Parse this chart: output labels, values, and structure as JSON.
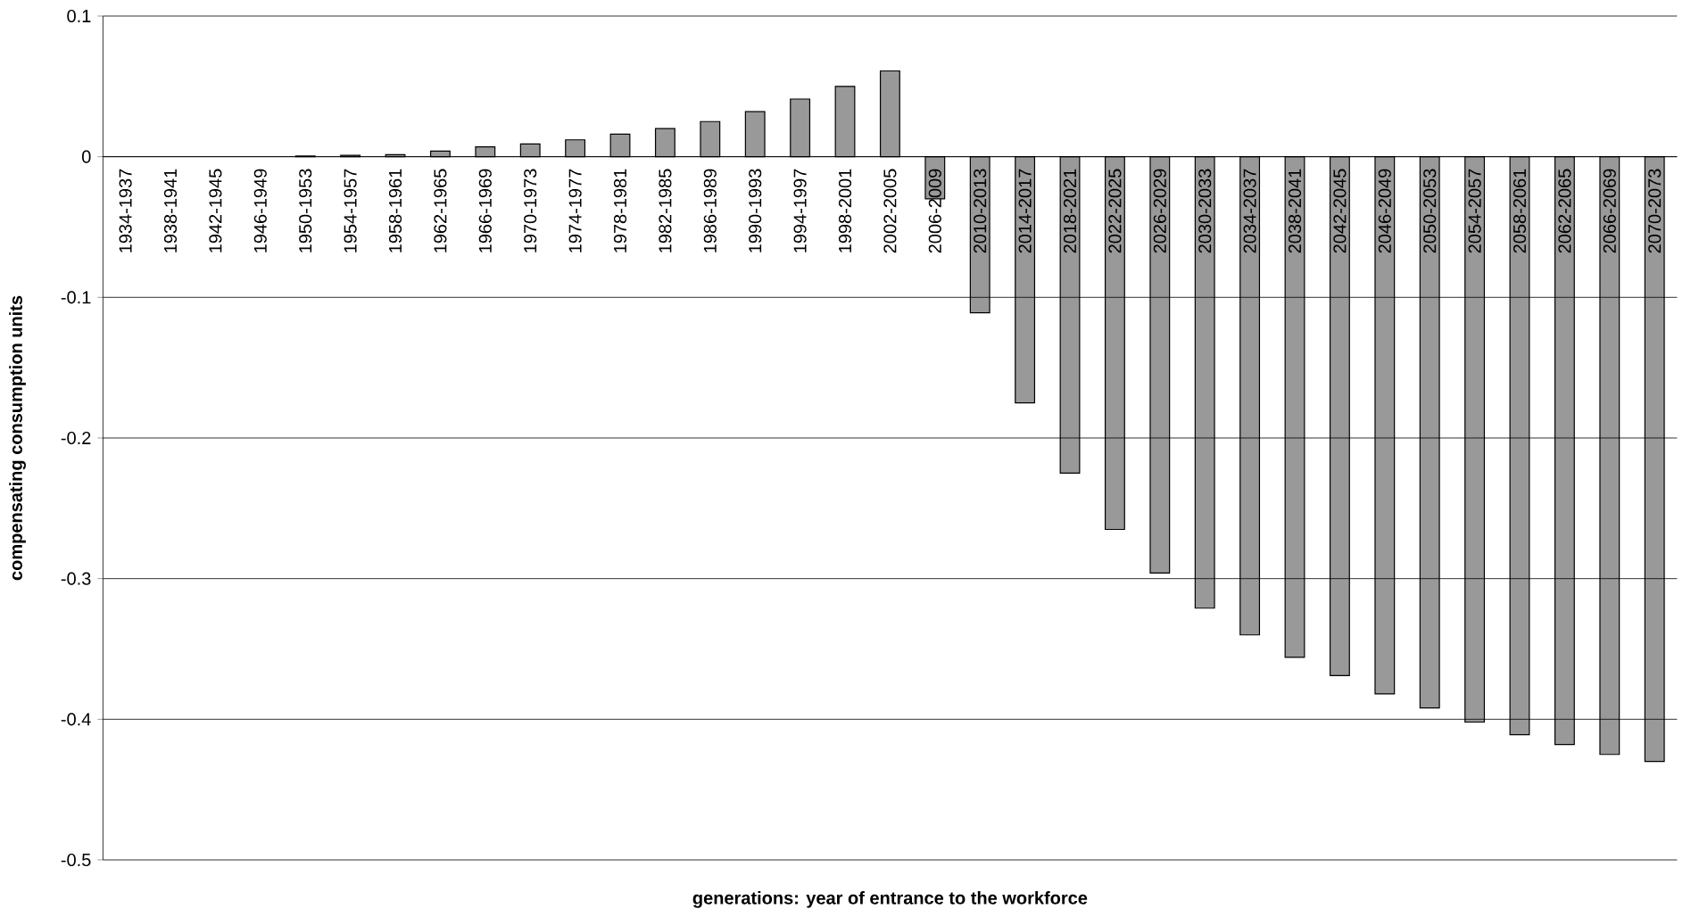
{
  "chart_data": {
    "type": "bar",
    "xlabel": "generations: year of entrance to the workforce",
    "ylabel": "compensating consumption units",
    "categories": [
      "1934-1937",
      "1938-1941",
      "1942-1945",
      "1946-1949",
      "1950-1953",
      "1954-1957",
      "1958-1961",
      "1962-1965",
      "1966-1969",
      "1970-1973",
      "1974-1977",
      "1978-1981",
      "1982-1985",
      "1986-1989",
      "1990-1993",
      "1994-1997",
      "1998-2001",
      "2002-2005",
      "2006-2009",
      "2010-2013",
      "2014-2017",
      "2018-2021",
      "2022-2025",
      "2026-2029",
      "2030-2033",
      "2034-2037",
      "2038-2041",
      "2042-2045",
      "2046-2049",
      "2050-2053",
      "2054-2057",
      "2058-2061",
      "2062-2065",
      "2066-2069",
      "2070-2073"
    ],
    "values": [
      0,
      0,
      0,
      0,
      0.0005,
      0.001,
      0.0015,
      0.004,
      0.007,
      0.009,
      0.012,
      0.016,
      0.02,
      0.025,
      0.032,
      0.041,
      0.05,
      0.061,
      -0.03,
      -0.111,
      -0.175,
      -0.225,
      -0.265,
      -0.296,
      -0.321,
      -0.34,
      -0.356,
      -0.369,
      -0.382,
      -0.392,
      -0.402,
      -0.411,
      -0.418,
      -0.425,
      -0.43
    ],
    "color": "#999999",
    "ylim": [
      -0.5,
      0.1
    ],
    "yticks": [
      0.1,
      0,
      -0.1,
      -0.2,
      -0.3,
      -0.4,
      -0.5
    ],
    "grid": "y"
  }
}
